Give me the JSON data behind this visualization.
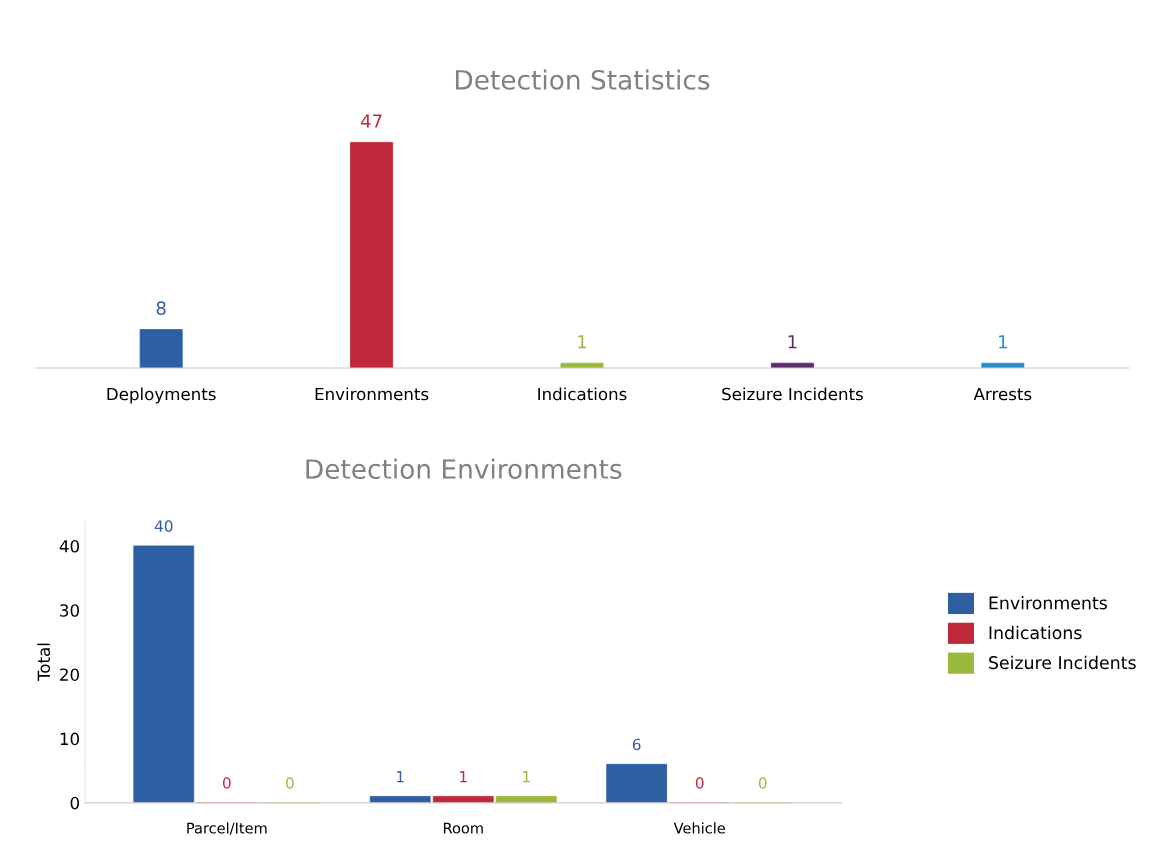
{
  "chart_data": [
    {
      "type": "bar",
      "title": "Detection Statistics",
      "categories": [
        "Deployments",
        "Environments",
        "Indications",
        "Seizure Incidents",
        "Arrests"
      ],
      "values": [
        8,
        47,
        1,
        1,
        1
      ],
      "colors": [
        "#2e5fa3",
        "#c0283c",
        "#9ab83a",
        "#5b2d6e",
        "#2a8fc9"
      ],
      "data_labels": true,
      "tick_labels": "x",
      "legend": false,
      "grid": false
    },
    {
      "type": "bar",
      "title": "Detection Environments",
      "ylabel": "Total",
      "categories": [
        "Parcel/Item",
        "Room",
        "Vehicle"
      ],
      "series": [
        {
          "name": "Environments",
          "color": "#2e5fa3",
          "values": [
            40,
            1,
            6
          ]
        },
        {
          "name": "Indications",
          "color": "#c0283c",
          "values": [
            0,
            1,
            0
          ]
        },
        {
          "name": "Seizure Incidents",
          "color": "#9ab83a",
          "values": [
            0,
            1,
            0
          ]
        }
      ],
      "ylim": [
        0,
        44
      ],
      "yticks": [
        0,
        10,
        20,
        30,
        40
      ],
      "data_labels": true,
      "legend": "right",
      "grid": false
    }
  ]
}
